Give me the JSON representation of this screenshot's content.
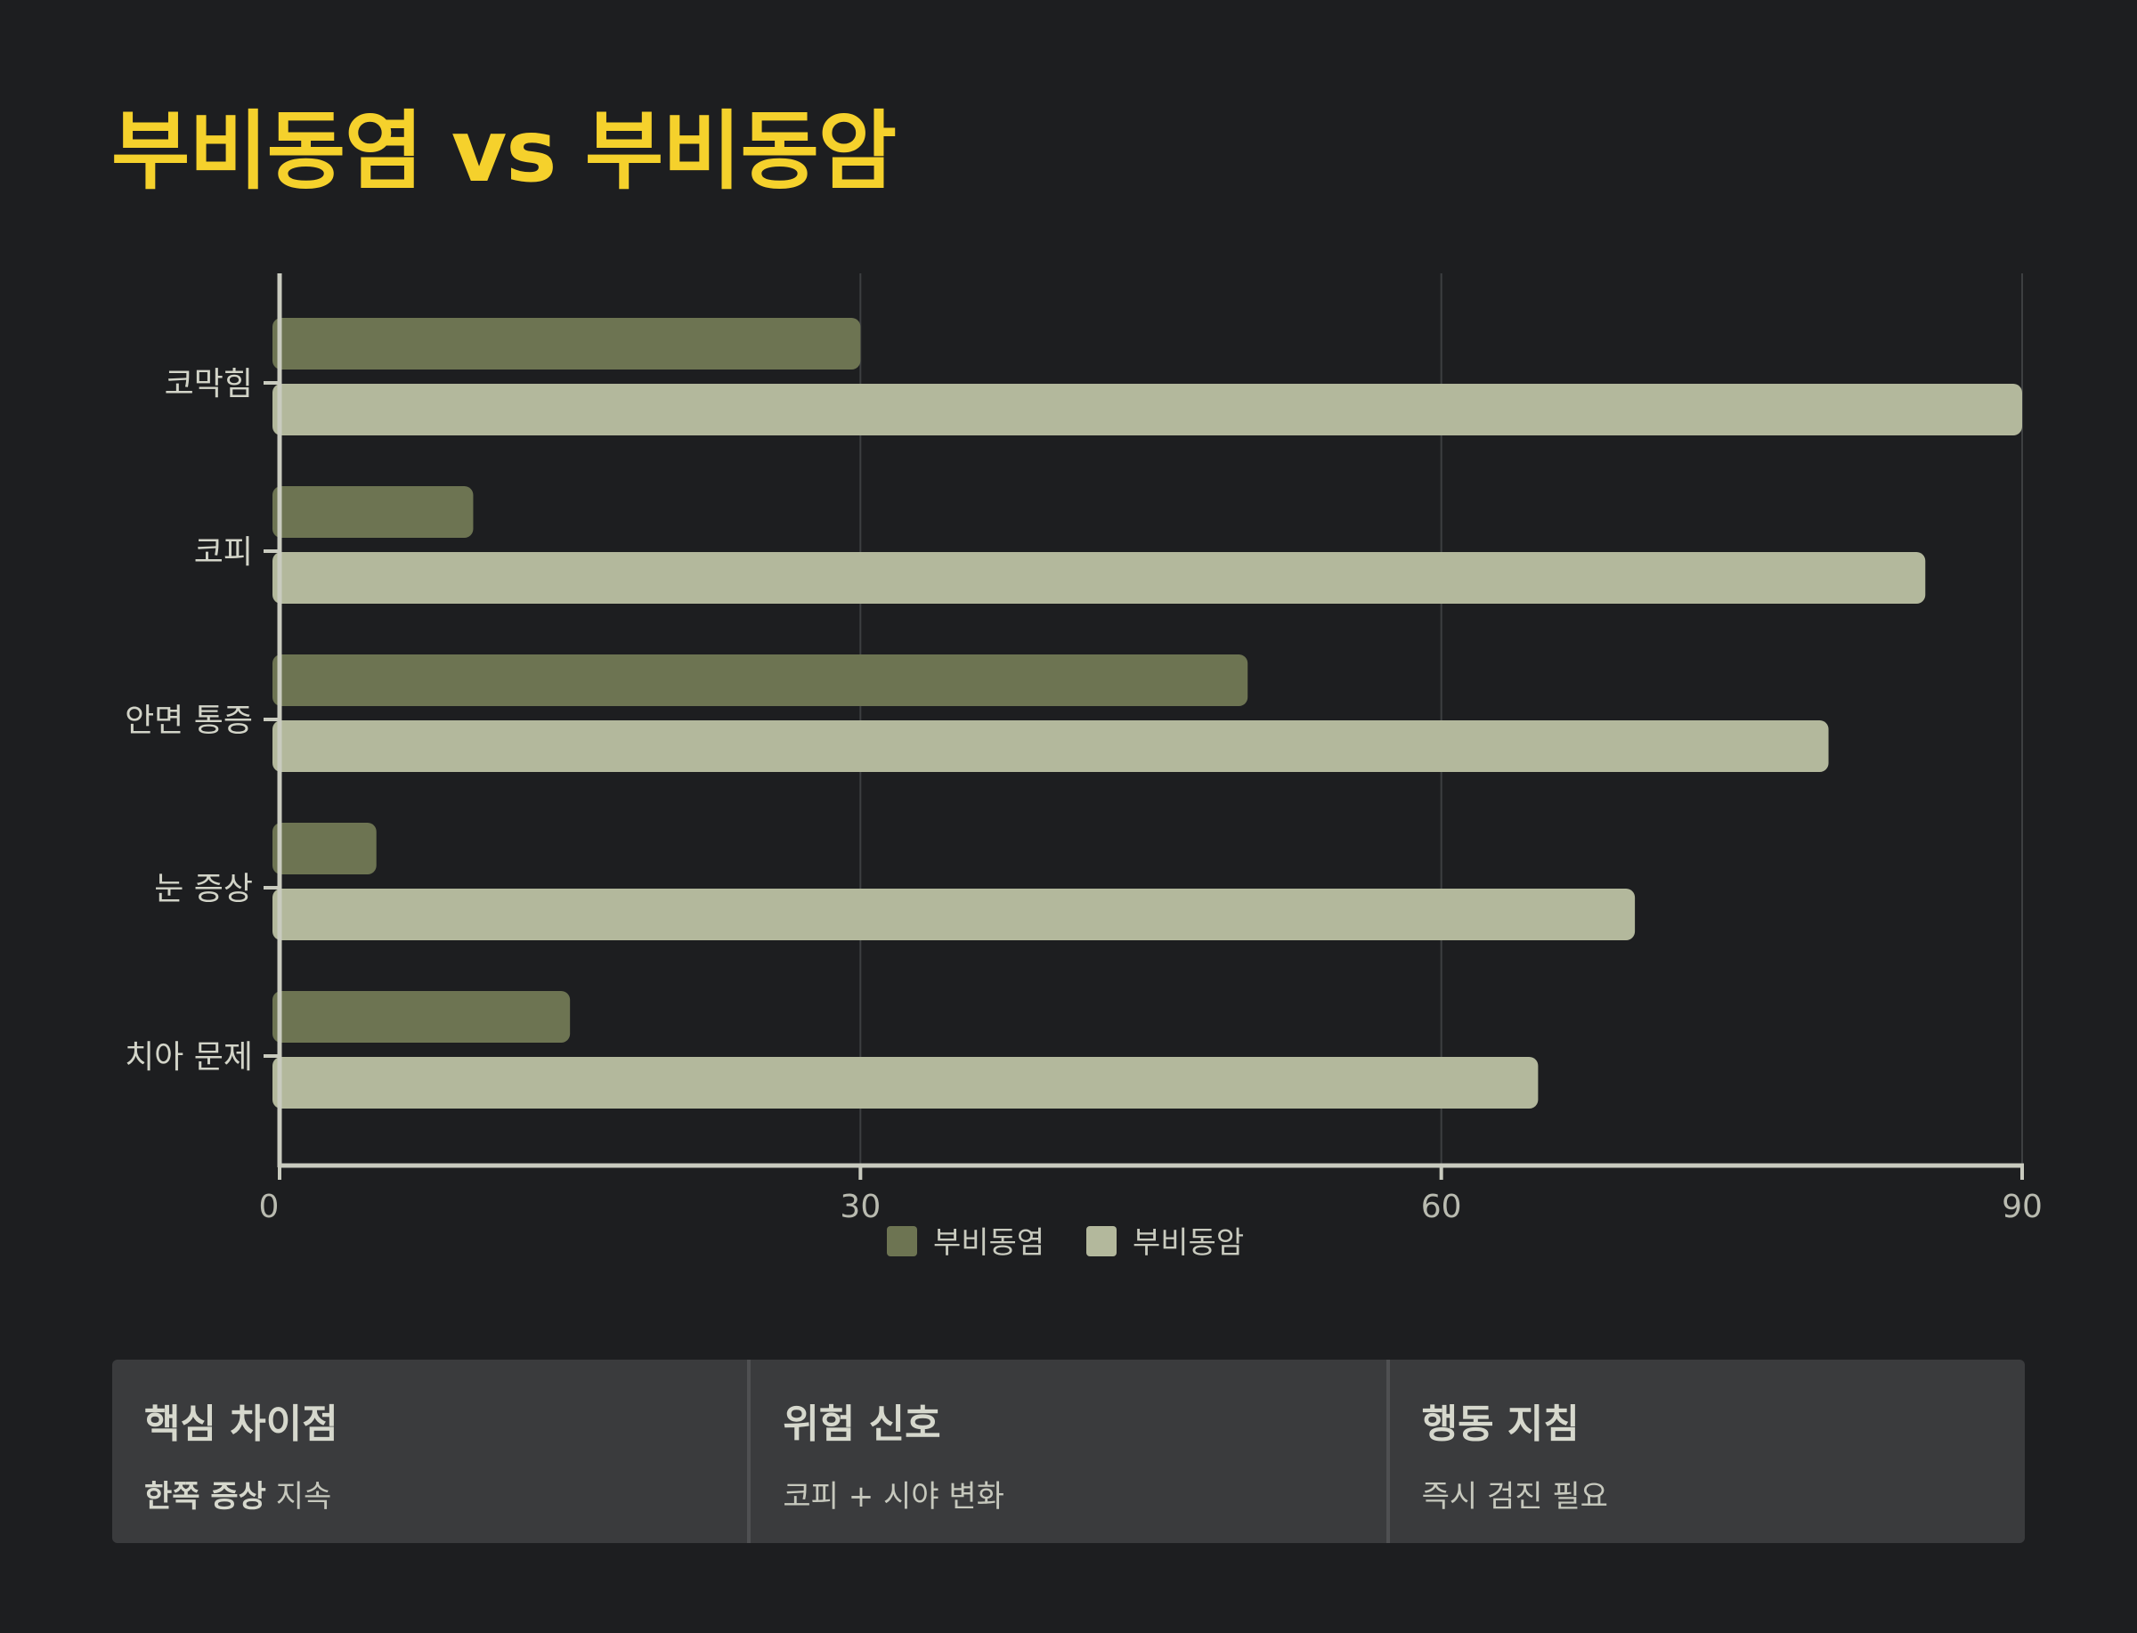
{
  "title": "부비동염 vs 부비동암",
  "chart_data": {
    "type": "bar",
    "orientation": "horizontal",
    "categories": [
      "코막힘",
      "코피",
      "안면 통증",
      "눈 증상",
      "치아 문제"
    ],
    "series": [
      {
        "name": "부비동염",
        "color": "#6d7452",
        "values": [
          30,
          10,
          50,
          5,
          15
        ]
      },
      {
        "name": "부비동암",
        "color": "#b3b89c",
        "values": [
          90,
          85,
          80,
          70,
          65
        ]
      }
    ],
    "xlim": [
      0,
      90
    ],
    "xticks": [
      "0",
      "30",
      "60",
      "90"
    ],
    "grid": true,
    "legend": "bottom-center"
  },
  "cards": [
    {
      "title": "핵심 차이점",
      "body_bold": "한쪽 증상",
      "body": " 지속"
    },
    {
      "title": "위험 신호",
      "body_bold": "",
      "body": "코피 + 시야 변화"
    },
    {
      "title": "행동 지침",
      "body_bold": "",
      "body": "즉시 검진 필요"
    }
  ]
}
